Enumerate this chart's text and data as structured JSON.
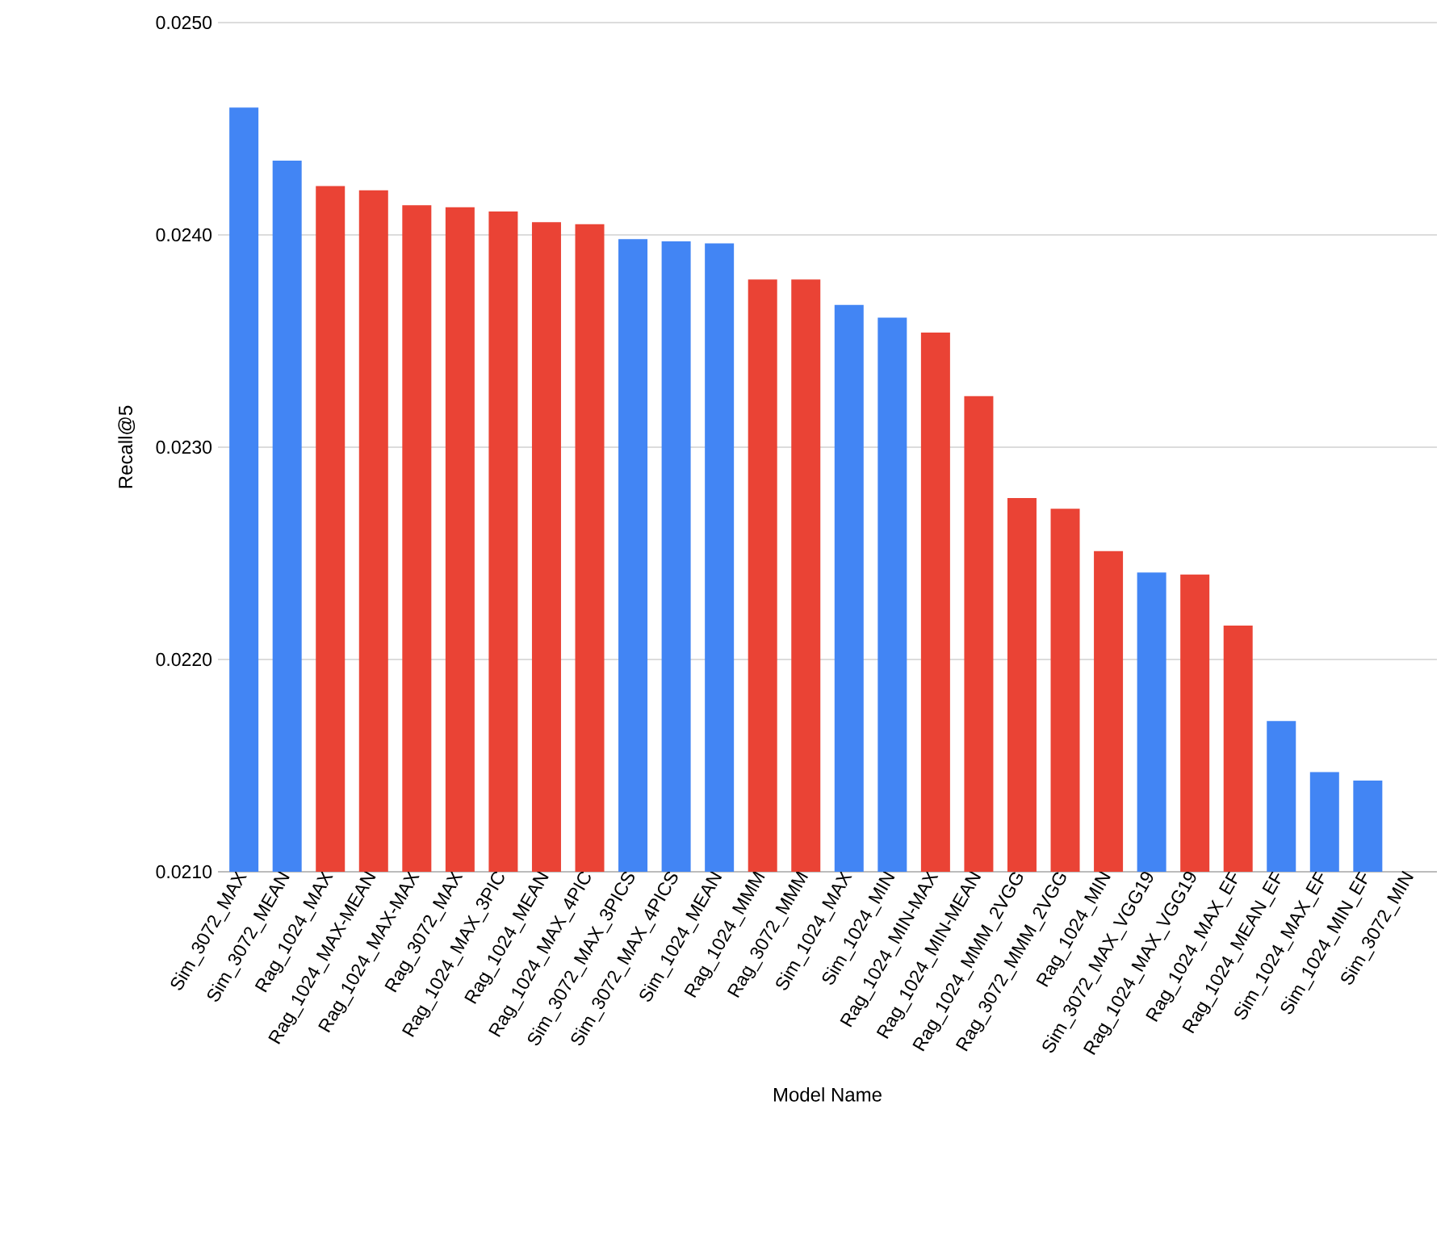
{
  "chart_data": {
    "type": "bar",
    "xlabel": "Model Name",
    "ylabel": "Recall@5",
    "categories": [
      "Sim_3072_MAX",
      "Sim_3072_MEAN",
      "Rag_1024_MAX",
      "Rag_1024_MAX-MEAN",
      "Rag_1024_MAX-MAX",
      "Rag_3072_MAX",
      "Rag_1024_MAX_3PIC",
      "Rag_1024_MEAN",
      "Rag_1024_MAX_4PIC",
      "Sim_3072_MAX_3PICS",
      "Sim_3072_MAX_4PICS",
      "Sim_1024_MEAN",
      "Rag_1024_MMM",
      "Rag_3072_MMM",
      "Sim_1024_MAX",
      "Sim_1024_MIN",
      "Rag_1024_MIN-MAX",
      "Rag_1024_MIN-MEAN",
      "Rag_1024_MMM_2VGG",
      "Rag_3072_MMM_2VGG",
      "Rag_1024_MIN",
      "Sim_3072_MAX_VGG19",
      "Rag_1024_MAX_VGG19",
      "Rag_1024_MAX_EF",
      "Rag_1024_MEAN_EF",
      "Sim_1024_MAX_EF",
      "Sim_1024_MIN_EF",
      "Sim_3072_MIN"
    ],
    "values": [
      0.0246,
      0.02435,
      0.02423,
      0.02421,
      0.02414,
      0.02413,
      0.02411,
      0.02406,
      0.02405,
      0.02398,
      0.02397,
      0.02396,
      0.02379,
      0.02379,
      0.02367,
      0.02361,
      0.02354,
      0.02324,
      0.02276,
      0.02271,
      0.02251,
      0.02241,
      0.0224,
      0.02216,
      0.02171,
      0.02147,
      0.02143,
      null
    ],
    "colors": [
      "#4285f4",
      "#4285f4",
      "#ea4335",
      "#ea4335",
      "#ea4335",
      "#ea4335",
      "#ea4335",
      "#ea4335",
      "#ea4335",
      "#4285f4",
      "#4285f4",
      "#4285f4",
      "#ea4335",
      "#ea4335",
      "#4285f4",
      "#4285f4",
      "#ea4335",
      "#ea4335",
      "#ea4335",
      "#ea4335",
      "#ea4335",
      "#4285f4",
      "#ea4335",
      "#ea4335",
      "#4285f4",
      "#4285f4",
      "#4285f4",
      "#4285f4"
    ],
    "ylim": [
      0.021,
      0.025
    ],
    "yticks": [
      {
        "value": 0.021,
        "label": "0.0210"
      },
      {
        "value": 0.022,
        "label": "0.0220"
      },
      {
        "value": 0.023,
        "label": "0.0230"
      },
      {
        "value": 0.024,
        "label": "0.0240"
      },
      {
        "value": 0.025,
        "label": "0.0250"
      }
    ],
    "grid": "y"
  }
}
